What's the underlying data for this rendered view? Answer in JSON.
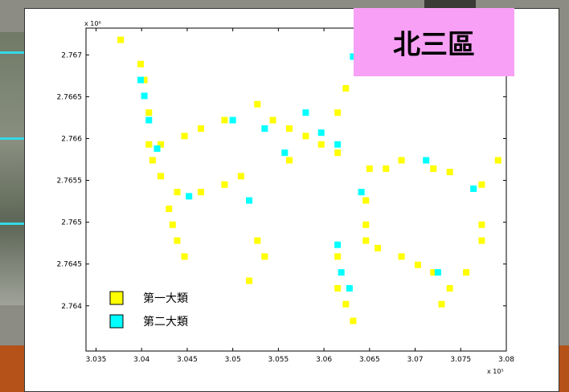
{
  "slide": {
    "label": "北三區"
  },
  "chart_data": {
    "type": "scatter",
    "xlim": [
      3.0339,
      3.08
    ],
    "ylim": [
      2.76346,
      2.76732
    ],
    "xticks": [
      3.035,
      3.04,
      3.045,
      3.05,
      3.055,
      3.06,
      3.065,
      3.07,
      3.075,
      3.08
    ],
    "yticks": [
      2.764,
      2.7645,
      2.765,
      2.7655,
      2.766,
      2.7665,
      2.767
    ],
    "x_exponent": "x 10⁵",
    "y_exponent": "x 10⁶",
    "series": [
      {
        "name": "第一大類",
        "color": "#ffff00",
        "x": [
          3.0377,
          3.0399,
          3.0403,
          3.0408,
          3.0408,
          3.0412,
          3.0421,
          3.0439,
          3.0465,
          3.0491,
          3.0509,
          3.043,
          3.0434,
          3.0439,
          3.0447,
          3.0421,
          3.0447,
          3.0465,
          3.0491,
          3.0527,
          3.0544,
          3.0562,
          3.058,
          3.0597,
          3.0615,
          3.0615,
          3.0624,
          3.0562,
          3.065,
          3.0668,
          3.0685,
          3.072,
          3.0738,
          3.0773,
          3.0791,
          3.0646,
          3.0646,
          3.0646,
          3.0615,
          3.0615,
          3.0624,
          3.0632,
          3.0659,
          3.0685,
          3.0703,
          3.072,
          3.0738,
          3.0729,
          3.0756,
          3.0773,
          3.0527,
          3.0535,
          3.0518,
          3.0773
        ],
        "values": [
          2.76718,
          2.76689,
          2.7667,
          2.76631,
          2.76593,
          2.76574,
          2.76555,
          2.76536,
          2.76536,
          2.76545,
          2.76555,
          2.76516,
          2.76497,
          2.76478,
          2.76459,
          2.76593,
          2.76603,
          2.76612,
          2.76622,
          2.76641,
          2.76622,
          2.76612,
          2.76603,
          2.76593,
          2.76583,
          2.76631,
          2.7666,
          2.76574,
          2.76564,
          2.76564,
          2.76574,
          2.76564,
          2.7656,
          2.76545,
          2.76574,
          2.76526,
          2.76497,
          2.76478,
          2.76459,
          2.76421,
          2.76402,
          2.76382,
          2.76469,
          2.76459,
          2.76449,
          2.7644,
          2.76421,
          2.76402,
          2.7644,
          2.76478,
          2.76478,
          2.76459,
          2.7643,
          2.76497
        ]
      },
      {
        "name": "第二大類",
        "color": "#00ffff",
        "x": [
          3.0399,
          3.0403,
          3.0408,
          3.0417,
          3.05,
          3.0535,
          3.058,
          3.0597,
          3.0615,
          3.0632,
          3.0641,
          3.0615,
          3.0619,
          3.0628,
          3.0725,
          3.0764,
          3.0712,
          3.0557,
          3.0518,
          3.0452
        ],
        "values": [
          2.7667,
          2.76651,
          2.76622,
          2.76588,
          2.76622,
          2.76612,
          2.76631,
          2.76607,
          2.76593,
          2.76698,
          2.76536,
          2.76473,
          2.7644,
          2.76421,
          2.7644,
          2.7654,
          2.76574,
          2.76583,
          2.76526,
          2.76531
        ]
      }
    ]
  }
}
